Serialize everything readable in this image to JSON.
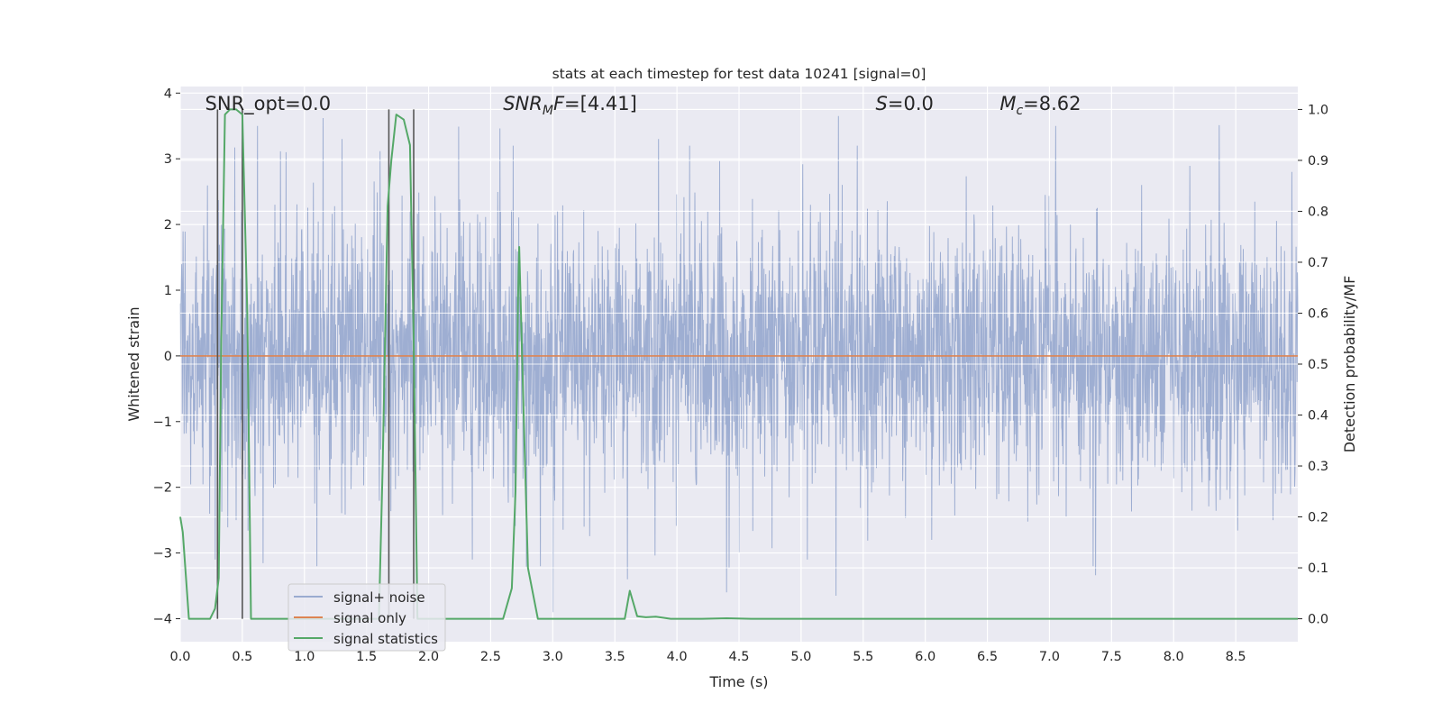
{
  "chart_data": {
    "type": "line",
    "title": "stats at each timestep for test data 10241 [signal=0]",
    "xlabel": "Time (s)",
    "ylabel": "Whitened strain",
    "ylabel_right": "Detection probability/MF",
    "xlim": [
      0.0,
      9.0
    ],
    "ylim": [
      -4.35,
      4.1
    ],
    "ylim_right": [
      -0.045,
      1.045
    ],
    "x_ticks": [
      "0.0",
      "0.5",
      "1.0",
      "1.5",
      "2.0",
      "2.5",
      "3.0",
      "3.5",
      "4.0",
      "4.5",
      "5.0",
      "5.5",
      "6.0",
      "6.5",
      "7.0",
      "7.5",
      "8.0",
      "8.5"
    ],
    "y_ticks": [
      "4",
      "3",
      "2",
      "1",
      "0",
      "−1",
      "−2",
      "−3",
      "−4"
    ],
    "y_ticks_right": [
      "1.0",
      "0.9",
      "0.8",
      "0.7",
      "0.6",
      "0.5",
      "0.4",
      "0.3",
      "0.2",
      "0.1",
      "0.0"
    ],
    "grid": true,
    "legend_position": "lower-left",
    "annotations": [
      {
        "prefix": "SNR_opt",
        "sub": "",
        "suffix": "",
        "value": "=0.0",
        "x": 0.2
      },
      {
        "prefix": "SNR",
        "sub": "M",
        "suffix": "F",
        "value": "=[4.41]",
        "x": 2.6
      },
      {
        "prefix": "S",
        "sub": "",
        "suffix": "",
        "value": "=0.0",
        "x": 5.6
      },
      {
        "prefix": "M",
        "sub": "c",
        "suffix": "",
        "value": "=8.62",
        "x": 6.6
      }
    ],
    "vertical_markers_x": [
      0.3,
      0.5,
      1.68,
      1.88
    ],
    "series": [
      {
        "name": "signal+ noise",
        "color": "#9aabd0",
        "axis": "left",
        "style": "dense-noise",
        "amplitude_sigma": 1.0,
        "peaks": [
          [
            0.28,
            -3.1
          ],
          [
            0.45,
            -2.5
          ],
          [
            0.5,
            2.7
          ],
          [
            0.62,
            3.5
          ],
          [
            0.85,
            3.1
          ],
          [
            1.1,
            -3.2
          ],
          [
            1.3,
            3.3
          ],
          [
            1.85,
            2.2
          ],
          [
            2.35,
            -3.1
          ],
          [
            2.68,
            3.2
          ],
          [
            2.9,
            -3.2
          ],
          [
            3.0,
            -3.9
          ],
          [
            3.25,
            -2.6
          ],
          [
            3.6,
            -3.4
          ],
          [
            3.85,
            3.3
          ],
          [
            4.1,
            3.2
          ],
          [
            4.4,
            -3.6
          ],
          [
            5.05,
            -3.1
          ],
          [
            5.28,
            -3.65
          ],
          [
            5.3,
            3.65
          ],
          [
            5.45,
            3.2
          ],
          [
            6.05,
            -2.8
          ],
          [
            7.05,
            3.5
          ],
          [
            7.35,
            -3.2
          ],
          [
            8.8,
            -2.5
          ],
          [
            8.95,
            2.8
          ]
        ]
      },
      {
        "name": "signal only",
        "color": "#dd8452",
        "axis": "left",
        "x": [
          0.0,
          9.0
        ],
        "y": [
          0.0,
          0.0
        ]
      },
      {
        "name": "signal statistics",
        "color": "#55a868",
        "axis": "right",
        "x": [
          0.0,
          0.02,
          0.07,
          0.18,
          0.24,
          0.28,
          0.31,
          0.33,
          0.36,
          0.4,
          0.45,
          0.5,
          0.54,
          0.57,
          0.62,
          0.8,
          1.0,
          1.2,
          1.4,
          1.55,
          1.6,
          1.63,
          1.67,
          1.7,
          1.74,
          1.8,
          1.85,
          1.88,
          1.91,
          1.95,
          2.0,
          2.2,
          2.4,
          2.6,
          2.67,
          2.7,
          2.72,
          2.73,
          2.76,
          2.8,
          2.88,
          3.0,
          3.3,
          3.5,
          3.58,
          3.62,
          3.68,
          3.75,
          3.83,
          3.95,
          4.2,
          4.4,
          4.6,
          5.0,
          6.0,
          7.0,
          8.0,
          9.0
        ],
        "y": [
          0.2,
          0.17,
          0.0,
          0.0,
          0.0,
          0.02,
          0.08,
          0.55,
          0.99,
          1.0,
          1.0,
          0.99,
          0.6,
          0.0,
          0.0,
          0.0,
          0.0,
          0.0,
          0.0,
          0.0,
          0.0,
          0.3,
          0.81,
          0.9,
          0.99,
          0.98,
          0.93,
          0.55,
          0.0,
          0.0,
          0.0,
          0.0,
          0.0,
          0.0,
          0.06,
          0.25,
          0.63,
          0.73,
          0.45,
          0.1,
          0.0,
          0.0,
          0.0,
          0.0,
          0.0,
          0.055,
          0.005,
          0.003,
          0.004,
          0.0,
          0.0,
          0.001,
          0.0,
          0.0,
          0.0,
          0.0,
          0.0,
          0.0
        ]
      }
    ]
  }
}
